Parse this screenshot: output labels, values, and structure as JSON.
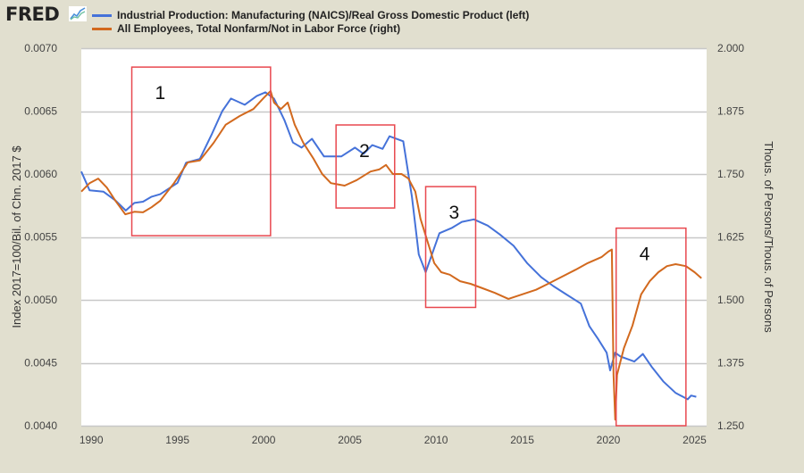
{
  "header": {
    "logo_text": "FRED",
    "logo_icon": "line-chart-icon"
  },
  "chart_data": {
    "type": "line",
    "title": "",
    "xlabel": "",
    "ylabel_left": "Index 2017=100/Bil. of Chn. 2017 $",
    "ylabel_right": "Thous. of Persons/Thous. of Persons",
    "xlim": [
      1989.42,
      2025.7
    ],
    "ylim_left": [
      0.004,
      0.007
    ],
    "ylim_right": [
      1.25,
      2.0
    ],
    "x_ticks": [
      1990,
      1995,
      2000,
      2005,
      2010,
      2015,
      2020,
      2025
    ],
    "x_tick_labels": [
      "1990",
      "1995",
      "2000",
      "2005",
      "2010",
      "2015",
      "2020",
      "2025"
    ],
    "y_ticks_left": [
      0.007,
      0.0065,
      0.006,
      0.0055,
      0.005,
      0.0045,
      0.004
    ],
    "y_tick_labels_left": [
      "0.0070",
      "0.0065",
      "0.0060",
      "0.0055",
      "0.0050",
      "0.0045",
      "0.0040"
    ],
    "y_ticks_right": [
      2.0,
      1.875,
      1.75,
      1.625,
      1.5,
      1.375,
      1.25
    ],
    "y_tick_labels_right": [
      "2.000",
      "1.875",
      "1.750",
      "1.625",
      "1.500",
      "1.375",
      "1.250"
    ],
    "grid": true,
    "legend_position": "top-left",
    "series": [
      {
        "name": "Industrial Production: Manufacturing (NAICS)/Real Gross Domestic Product (left)",
        "axis": "left",
        "color": "#4572d9",
        "x": [
          1989.42,
          1989.9,
          1990.7,
          1991.4,
          1992.0,
          1992.5,
          1993.0,
          1993.5,
          1994.0,
          1995.0,
          1995.5,
          1996.3,
          1997.0,
          1997.6,
          1998.1,
          1998.9,
          1999.6,
          2000.1,
          2000.6,
          2001.2,
          2001.7,
          2002.2,
          2002.8,
          2003.5,
          2004.5,
          2005.3,
          2005.8,
          2006.3,
          2006.9,
          2007.3,
          2008.1,
          2008.6,
          2009.0,
          2009.4,
          2010.2,
          2010.9,
          2011.5,
          2012.2,
          2013.0,
          2013.7,
          2014.5,
          2015.3,
          2016.1,
          2016.8,
          2017.6,
          2018.4,
          2018.9,
          2019.4,
          2019.9,
          2020.1,
          2020.4,
          2020.7,
          2021.5,
          2022.0,
          2022.5,
          2023.2,
          2023.9,
          2024.6,
          2024.8,
          2025.1
        ],
        "values": [
          0.00602,
          0.00587,
          0.00586,
          0.00579,
          0.00571,
          0.00577,
          0.00578,
          0.00582,
          0.00584,
          0.00593,
          0.00609,
          0.00612,
          0.00632,
          0.0065,
          0.0066,
          0.00655,
          0.00662,
          0.00665,
          0.0066,
          0.00643,
          0.00625,
          0.00621,
          0.00628,
          0.00614,
          0.00614,
          0.00621,
          0.00616,
          0.00623,
          0.0062,
          0.0063,
          0.00626,
          0.00582,
          0.00536,
          0.00522,
          0.00553,
          0.00557,
          0.00562,
          0.00564,
          0.00559,
          0.00552,
          0.00543,
          0.00529,
          0.00518,
          0.00511,
          0.00504,
          0.00497,
          0.00479,
          0.00469,
          0.00458,
          0.00444,
          0.00458,
          0.00455,
          0.00451,
          0.00457,
          0.00447,
          0.00435,
          0.00426,
          0.00421,
          0.00424,
          0.00423
        ]
      },
      {
        "name": "All Employees, Total Nonfarm/Not in Labor Force (right)",
        "axis": "right",
        "color": "#d2691e",
        "x": [
          1989.42,
          1989.9,
          1990.4,
          1990.9,
          1991.4,
          1991.97,
          1992.5,
          1993.0,
          1993.5,
          1994.0,
          1994.8,
          1995.6,
          1996.3,
          1997.1,
          1997.8,
          1998.6,
          1999.4,
          2000.0,
          2000.4,
          2000.6,
          2001.0,
          2001.4,
          2001.8,
          2002.3,
          2002.9,
          2003.4,
          2003.9,
          2004.7,
          2005.4,
          2006.2,
          2006.7,
          2007.1,
          2007.5,
          2008.0,
          2008.4,
          2008.8,
          2009.1,
          2009.5,
          2009.9,
          2010.3,
          2010.8,
          2011.4,
          2012.0,
          2012.7,
          2013.4,
          2014.2,
          2015.0,
          2015.8,
          2016.5,
          2017.3,
          2018.1,
          2018.8,
          2019.6,
          2020.0,
          2020.2,
          2020.3,
          2020.4,
          2020.5,
          2020.9,
          2021.4,
          2021.9,
          2022.4,
          2022.9,
          2023.4,
          2023.9,
          2024.5,
          2025.0,
          2025.4
        ],
        "values": [
          1.715,
          1.732,
          1.741,
          1.723,
          1.697,
          1.67,
          1.675,
          1.674,
          1.684,
          1.697,
          1.732,
          1.773,
          1.777,
          1.812,
          1.848,
          1.865,
          1.879,
          1.901,
          1.915,
          1.892,
          1.879,
          1.892,
          1.848,
          1.812,
          1.78,
          1.75,
          1.732,
          1.727,
          1.738,
          1.755,
          1.759,
          1.768,
          1.75,
          1.75,
          1.741,
          1.715,
          1.661,
          1.617,
          1.573,
          1.555,
          1.55,
          1.537,
          1.532,
          1.523,
          1.514,
          1.502,
          1.511,
          1.52,
          1.532,
          1.546,
          1.56,
          1.573,
          1.585,
          1.596,
          1.6,
          1.351,
          1.262,
          1.351,
          1.404,
          1.449,
          1.511,
          1.537,
          1.555,
          1.567,
          1.571,
          1.567,
          1.555,
          1.543
        ]
      }
    ],
    "annotations": [
      {
        "label": "1",
        "x_range": [
          1992.35,
          2000.4
        ],
        "y_range_left": [
          0.00551,
          0.00685
        ],
        "color": "#e8484f"
      },
      {
        "label": "2",
        "x_range": [
          2004.2,
          2007.6
        ],
        "y_range_left": [
          0.00573,
          0.00639
        ],
        "color": "#e8484f"
      },
      {
        "label": "3",
        "x_range": [
          2009.4,
          2012.3
        ],
        "y_range_left": [
          0.00494,
          0.0059
        ],
        "color": "#e8484f"
      },
      {
        "label": "4",
        "x_range": [
          2020.45,
          2024.5
        ],
        "y_range_left": [
          0.004,
          0.00557
        ],
        "color": "#e8484f"
      }
    ]
  }
}
